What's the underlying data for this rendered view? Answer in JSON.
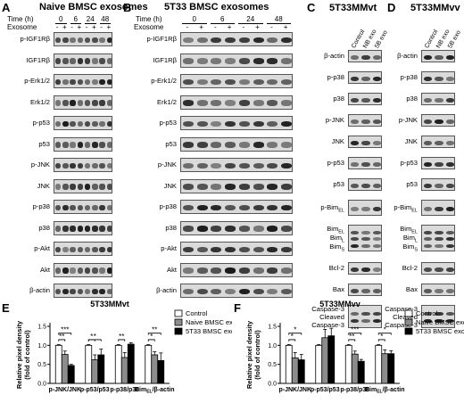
{
  "panelA": {
    "letter": "A",
    "title": "Naive BMSC exosomes",
    "time_label": "Time (h)",
    "exosome_label": "Exosome",
    "times": [
      "0",
      "6",
      "24",
      "48"
    ],
    "signs": [
      "-",
      "+",
      "-",
      "+",
      "-",
      "+",
      "-",
      "+"
    ],
    "rows": [
      "p-IGF1Rβ",
      "IGF1Rβ",
      "p-Erk1/2",
      "Erk1/2",
      "p-p53",
      "p53",
      "p-JNK",
      "JNK",
      "p-p38",
      "p38",
      "p-Akt",
      "Akt",
      "β-actin"
    ]
  },
  "panelB": {
    "letter": "B",
    "title": "5T33 BMSC exosomes",
    "time_label": "Time (h)",
    "exosome_label": "Exosome",
    "times": [
      "0",
      "6",
      "24",
      "48"
    ],
    "signs": [
      "-",
      "+",
      "-",
      "+",
      "-",
      "+",
      "-",
      "+"
    ],
    "rows": [
      "p-IGF1Rβ",
      "IGF1Rβ",
      "p-Erk1/2",
      "Erk1/2",
      "p-p53",
      "p53",
      "p-JNK",
      "JNK",
      "p-p38",
      "p38",
      "p-Akt",
      "Akt",
      "β-actin"
    ]
  },
  "panelC": {
    "letter": "C",
    "title": "5T33MMvt",
    "lanes": [
      "Control",
      "NB exo",
      "5B exo"
    ],
    "rows": [
      "β-actin",
      "p-p38",
      "p38",
      "p-JNK",
      "JNK",
      "p-p53",
      "p53",
      "p-BimEL",
      "BimEL BimL BimS",
      "Bcl-2",
      "Bax",
      "Caspase-3 Cleaved Caspase-3"
    ]
  },
  "panelD": {
    "letter": "D",
    "title": "5T33MMvv",
    "lanes": [
      "Control",
      "NB exo",
      "5B exo"
    ],
    "rows": [
      "β-actin",
      "p-p38",
      "p38",
      "p-JNK",
      "JNK",
      "p-p53",
      "p53",
      "p-BimEL",
      "BimEL BimL BimS",
      "Bcl-2",
      "Bax",
      "Caspase-3 Cleaved Caspase-3"
    ]
  },
  "labels": {
    "bim_el": "p-Bim",
    "el": "EL",
    "l": "L",
    "s": "S",
    "bim": "Bim",
    "casp": "Caspase-3",
    "cleaved": "Cleaved",
    "y_axis": "Relative pixel density",
    "y_axis2": "(fold of control)"
  },
  "chart_data": [
    {
      "panel": "E",
      "type": "bar",
      "title": "5T33MMvt",
      "ylabel": "Relative pixel density (fold of control)",
      "ylim": [
        0,
        1.5
      ],
      "yticks": [
        "0.0",
        "0.5",
        "1.0",
        "1.5"
      ],
      "categories": [
        "p-JNK/JNK",
        "p-p53/p53",
        "p-p38/p38",
        "BimEL/β-actin"
      ],
      "series": [
        {
          "name": "Control",
          "color": "#ffffff",
          "values": [
            1.0,
            1.0,
            1.0,
            1.0
          ],
          "err": [
            0.02,
            0.02,
            0.02,
            0.02
          ]
        },
        {
          "name": "Naive BMSC exo",
          "color": "#8c8c8c",
          "values": [
            0.76,
            0.62,
            0.68,
            0.75
          ],
          "err": [
            0.09,
            0.13,
            0.13,
            0.08
          ]
        },
        {
          "name": "5T33 BMSC exo",
          "color": "#000000",
          "values": [
            0.47,
            0.75,
            1.03,
            0.6
          ],
          "err": [
            0.03,
            0.15,
            0.04,
            0.2
          ]
        }
      ],
      "significance": [
        "***",
        "**",
        "*",
        "*",
        "**",
        "**",
        "*"
      ]
    },
    {
      "panel": "F",
      "type": "bar",
      "title": "5T33MMvv",
      "ylabel": "Relative pixel density (fold of control)",
      "ylim": [
        0,
        1.5
      ],
      "yticks": [
        "0.0",
        "0.5",
        "1.0",
        "1.5"
      ],
      "categories": [
        "p-JNK/JNK",
        "p-p53/p53",
        "p-p38/p38",
        "BimEL/β-actin"
      ],
      "series": [
        {
          "name": "Control",
          "color": "#ffffff",
          "values": [
            1.0,
            1.0,
            1.0,
            1.0
          ],
          "err": [
            0.02,
            0.02,
            0.02,
            0.02
          ]
        },
        {
          "name": "Naive BMSC exo",
          "color": "#8c8c8c",
          "values": [
            0.67,
            1.2,
            0.77,
            0.78
          ],
          "err": [
            0.14,
            0.22,
            0.08,
            0.1
          ]
        },
        {
          "name": "5T33 BMSC exo",
          "color": "#000000",
          "values": [
            0.62,
            1.25,
            0.58,
            0.78
          ],
          "err": [
            0.14,
            0.2,
            0.05,
            0.08
          ]
        }
      ],
      "significance": [
        "*",
        "*",
        "**",
        "***",
        "*",
        "*"
      ]
    }
  ]
}
